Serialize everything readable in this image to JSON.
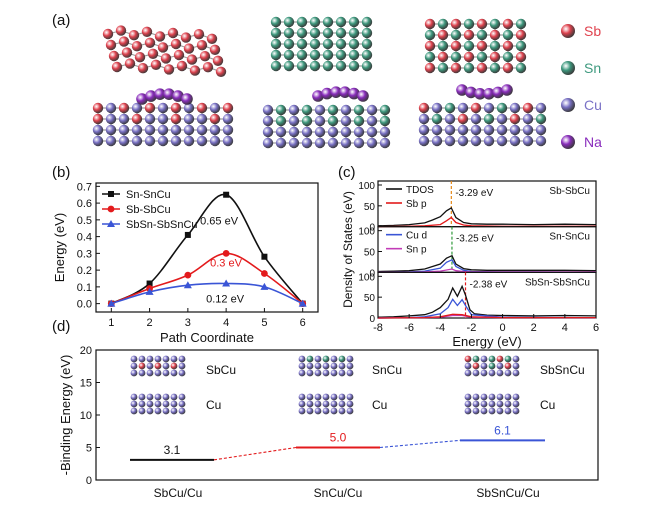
{
  "panels": {
    "a": "(a)",
    "b": "(b)",
    "c": "(c)",
    "d": "(d)"
  },
  "colors": {
    "Sb": "#e0434f",
    "Sn": "#3f9a7f",
    "Cu": "#7a72c6",
    "Na": "#8a2dbd",
    "black": "#111111",
    "red": "#e31a1c",
    "blue": "#3a55d6",
    "orange": "#e5891a",
    "green": "#2f9a3a",
    "magenta": "#c23bb7"
  },
  "legend_a": [
    {
      "label": "Sb",
      "element": "Sb"
    },
    {
      "label": "Sn",
      "element": "Sn"
    },
    {
      "label": "Cu",
      "element": "Cu"
    },
    {
      "label": "Na",
      "element": "Na"
    }
  ],
  "chart_data": [
    {
      "id": "b",
      "type": "line",
      "xlabel": "Path Coordinate",
      "ylabel": "Energy (eV)",
      "xlim": [
        0.6,
        6.4
      ],
      "ylim": [
        -0.05,
        0.72
      ],
      "xticks": [
        1,
        2,
        3,
        4,
        5,
        6
      ],
      "yticks": [
        0.0,
        0.1,
        0.2,
        0.3,
        0.4,
        0.5,
        0.6,
        0.7
      ],
      "ytick_labels": [
        "0.0",
        "0.1",
        "0.2",
        "0.3",
        "0.4",
        "0.5",
        "0.6",
        "0.7"
      ],
      "legend_position": "top-left",
      "series": [
        {
          "name": "Sn-SnCu",
          "color": "black",
          "marker": "square",
          "x": [
            1,
            2,
            3,
            4,
            5,
            6
          ],
          "y": [
            0.0,
            0.12,
            0.41,
            0.65,
            0.28,
            0.0
          ],
          "peak_label": "0.65 eV"
        },
        {
          "name": "Sb-SbCu",
          "color": "red",
          "marker": "circle",
          "x": [
            1,
            2,
            3,
            4,
            5,
            6
          ],
          "y": [
            0.0,
            0.09,
            0.17,
            0.3,
            0.18,
            0.0
          ],
          "peak_label": "0.3 eV"
        },
        {
          "name": "SbSn-SbSnCu",
          "color": "blue",
          "marker": "triangle",
          "x": [
            1,
            2,
            3,
            4,
            5,
            6
          ],
          "y": [
            0.0,
            0.07,
            0.11,
            0.12,
            0.1,
            0.0
          ],
          "peak_label": "0.12 eV"
        }
      ]
    },
    {
      "id": "c",
      "type": "line",
      "xlabel": "Energy (eV)",
      "ylabel": "Density of States (eV)",
      "xlim": [
        -8,
        6
      ],
      "xticks": [
        -8,
        -6,
        -4,
        -2,
        0,
        2,
        4,
        6
      ],
      "subplots": [
        {
          "title": "Sb-SbCu",
          "ylim": [
            0,
            100
          ],
          "yticks": [
            0,
            50,
            100
          ],
          "legend": [
            {
              "name": "TDOS",
              "color": "black"
            },
            {
              "name": "Sb p",
              "color": "red"
            }
          ],
          "marker_line": {
            "x": -3.29,
            "label": "-3.29 eV",
            "color": "orange"
          },
          "series": [
            {
              "name": "TDOS",
              "color": "black",
              "x": [
                -8,
                -7,
                -6,
                -5,
                -4.5,
                -4,
                -3.6,
                -3.29,
                -3.0,
                -2.5,
                -2,
                -1,
                0,
                2,
                4,
                6
              ],
              "y": [
                2,
                3,
                5,
                9,
                16,
                24,
                38,
                45,
                22,
                10,
                7,
                6,
                6,
                5,
                6,
                5
              ]
            },
            {
              "name": "Sb p",
              "color": "red",
              "x": [
                -8,
                -6,
                -5,
                -4,
                -3.6,
                -3.29,
                -3.0,
                -2.5,
                -2,
                0,
                2,
                6
              ],
              "y": [
                0,
                1,
                2,
                5,
                14,
                22,
                10,
                4,
                2,
                1,
                1,
                1
              ]
            }
          ]
        },
        {
          "title": "Sn-SnCu",
          "ylim": [
            0,
            100
          ],
          "yticks": [
            0,
            50,
            100
          ],
          "legend": [
            {
              "name": "Cu d",
              "color": "blue"
            },
            {
              "name": "Sn p",
              "color": "magenta"
            }
          ],
          "marker_line": {
            "x": -3.25,
            "label": "-3.25 eV",
            "color": "green"
          },
          "series": [
            {
              "name": "TDOS",
              "color": "black",
              "x": [
                -8,
                -7,
                -6,
                -5,
                -4.5,
                -4,
                -3.6,
                -3.25,
                -3.0,
                -2.5,
                -2,
                -1,
                0,
                2,
                4,
                6
              ],
              "y": [
                2,
                3,
                4,
                8,
                14,
                20,
                34,
                40,
                20,
                9,
                6,
                5,
                5,
                5,
                5,
                4
              ]
            },
            {
              "name": "Cu d",
              "color": "blue",
              "x": [
                -8,
                -6,
                -5,
                -4,
                -3.6,
                -3.25,
                -3.0,
                -2.5,
                -2,
                0,
                2,
                6
              ],
              "y": [
                0,
                1,
                3,
                10,
                24,
                30,
                14,
                5,
                2,
                1,
                1,
                0
              ]
            },
            {
              "name": "Sn p",
              "color": "magenta",
              "x": [
                -8,
                -6,
                -5,
                -4,
                -3.25,
                -3,
                -2.5,
                -2,
                0,
                6
              ],
              "y": [
                0,
                0,
                1,
                3,
                8,
                4,
                2,
                1,
                1,
                1
              ]
            }
          ]
        },
        {
          "title": "SbSn-SbSnCu",
          "ylim": [
            0,
            100
          ],
          "yticks": [
            0,
            50,
            100
          ],
          "legend": [],
          "marker_line": {
            "x": -2.38,
            "label": "-2.38 eV",
            "color": "red"
          },
          "series": [
            {
              "name": "TDOS",
              "color": "black",
              "x": [
                -8,
                -7,
                -6,
                -5,
                -4.5,
                -4,
                -3.5,
                -3.2,
                -2.9,
                -2.6,
                -2.38,
                -2.1,
                -1.8,
                -1,
                0,
                2,
                4,
                6
              ],
              "y": [
                2,
                3,
                5,
                8,
                14,
                25,
                45,
                72,
                52,
                76,
                55,
                20,
                10,
                7,
                6,
                5,
                6,
                5
              ]
            },
            {
              "name": "Cu d",
              "color": "blue",
              "x": [
                -8,
                -6,
                -5,
                -4,
                -3.5,
                -3.2,
                -2.9,
                -2.6,
                -2.38,
                -2,
                0,
                6
              ],
              "y": [
                0,
                1,
                3,
                10,
                25,
                45,
                30,
                44,
                30,
                8,
                2,
                1
              ]
            },
            {
              "name": "Sn p",
              "color": "magenta",
              "x": [
                -8,
                -5,
                -4,
                -3.2,
                -2.6,
                -2,
                0,
                6
              ],
              "y": [
                0,
                1,
                2,
                6,
                6,
                2,
                1,
                1
              ]
            },
            {
              "name": "Sb p",
              "color": "red",
              "x": [
                -8,
                -5,
                -4,
                -3.2,
                -2.6,
                -2,
                0,
                6
              ],
              "y": [
                0,
                1,
                3,
                9,
                8,
                3,
                1,
                1
              ]
            }
          ]
        }
      ]
    },
    {
      "id": "d",
      "type": "line",
      "ylabel": "-Binding Energy (eV)",
      "ylim": [
        0,
        20
      ],
      "yticks": [
        0,
        5,
        10,
        15,
        20
      ],
      "categories": [
        "SbCu/Cu",
        "SnCu/Cu",
        "SbSnCu/Cu"
      ],
      "values": [
        3.1,
        5.0,
        6.1
      ],
      "value_labels": [
        "3.1",
        "5.0",
        "6.1"
      ],
      "level_colors": [
        "black",
        "red",
        "blue"
      ],
      "structure_labels": [
        {
          "top": "SbCu",
          "bottom": "Cu"
        },
        {
          "top": "SnCu",
          "bottom": "Cu"
        },
        {
          "top": "SbSnCu",
          "bottom": "Cu"
        }
      ]
    }
  ]
}
